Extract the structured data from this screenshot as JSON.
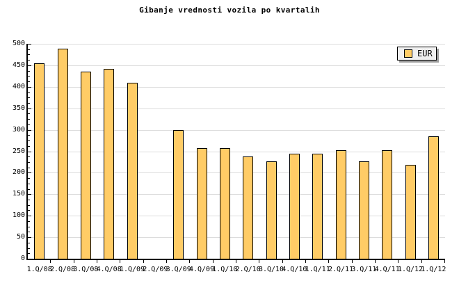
{
  "chart_data": {
    "type": "bar",
    "title": "Gibanje vrednosti vozila po kvartalih",
    "categories": [
      "1.Q/08",
      "2.Q/08",
      "3.Q/08",
      "4.Q/08",
      "1.Q/09",
      "2.Q/09",
      "3.Q/09",
      "4.Q/09",
      "1.Q/10",
      "2.Q/10",
      "3.Q/10",
      "4.Q/10",
      "1.Q/11",
      "2.Q/11",
      "3.Q/11",
      "4.Q/11",
      "1.Q/12",
      "1.Q/12"
    ],
    "series": [
      {
        "name": "EUR",
        "values": [
          455,
          488,
          435,
          442,
          409,
          null,
          300,
          258,
          257,
          238,
          226,
          245,
          245,
          252,
          226,
          252,
          218,
          285
        ]
      }
    ],
    "xlabel": "",
    "ylabel": "",
    "ylim": [
      0,
      500
    ],
    "ytick_major": 50,
    "ytick_minor": 12.5,
    "ytick_labels": [
      "0",
      "50",
      "100",
      "150",
      "200",
      "250",
      "300",
      "350",
      "400",
      "450",
      "500"
    ],
    "grid": true,
    "legend": {
      "label": "EUR",
      "position": "top-right",
      "swatch_icon": "legend-swatch"
    },
    "colors": {
      "bar_fill": "#ffcc66",
      "bar_border": "#000000",
      "grid": "#dcdcdc",
      "axis": "#000000",
      "background": "#ffffff",
      "legend_background": "#f0f0f0",
      "legend_shadow": "#a0a0a0",
      "title_text": "#000000"
    }
  }
}
